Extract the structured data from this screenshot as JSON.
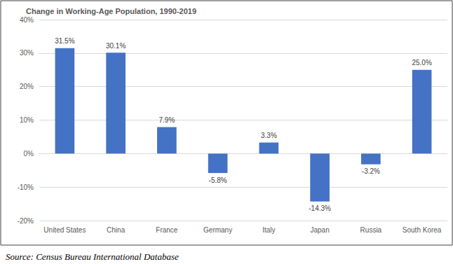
{
  "chart_data": {
    "type": "bar",
    "title": "Change in Working-Age Population, 1990-2019",
    "source": "Source: Census Bureau International Database",
    "categories": [
      "United States",
      "China",
      "France",
      "Germany",
      "Italy",
      "Japan",
      "Russia",
      "South Korea"
    ],
    "values": [
      31.5,
      30.1,
      7.9,
      -5.8,
      3.3,
      -14.3,
      -3.2,
      25.0
    ],
    "value_labels": [
      "31.5%",
      "30.1%",
      "7.9%",
      "-5.8%",
      "3.3%",
      "-14.3%",
      "-3.2%",
      "25.0%"
    ],
    "data_labels": true,
    "color": "#4472c4",
    "ylim": [
      -20,
      40
    ],
    "yticks": [
      {
        "value": -20,
        "label": "-20%"
      },
      {
        "value": -10,
        "label": "-10%"
      },
      {
        "value": 0,
        "label": "0%"
      },
      {
        "value": 10,
        "label": "10%"
      },
      {
        "value": 20,
        "label": "20%"
      },
      {
        "value": 30,
        "label": "30%"
      },
      {
        "value": 40,
        "label": "40%"
      }
    ],
    "grid": true
  }
}
